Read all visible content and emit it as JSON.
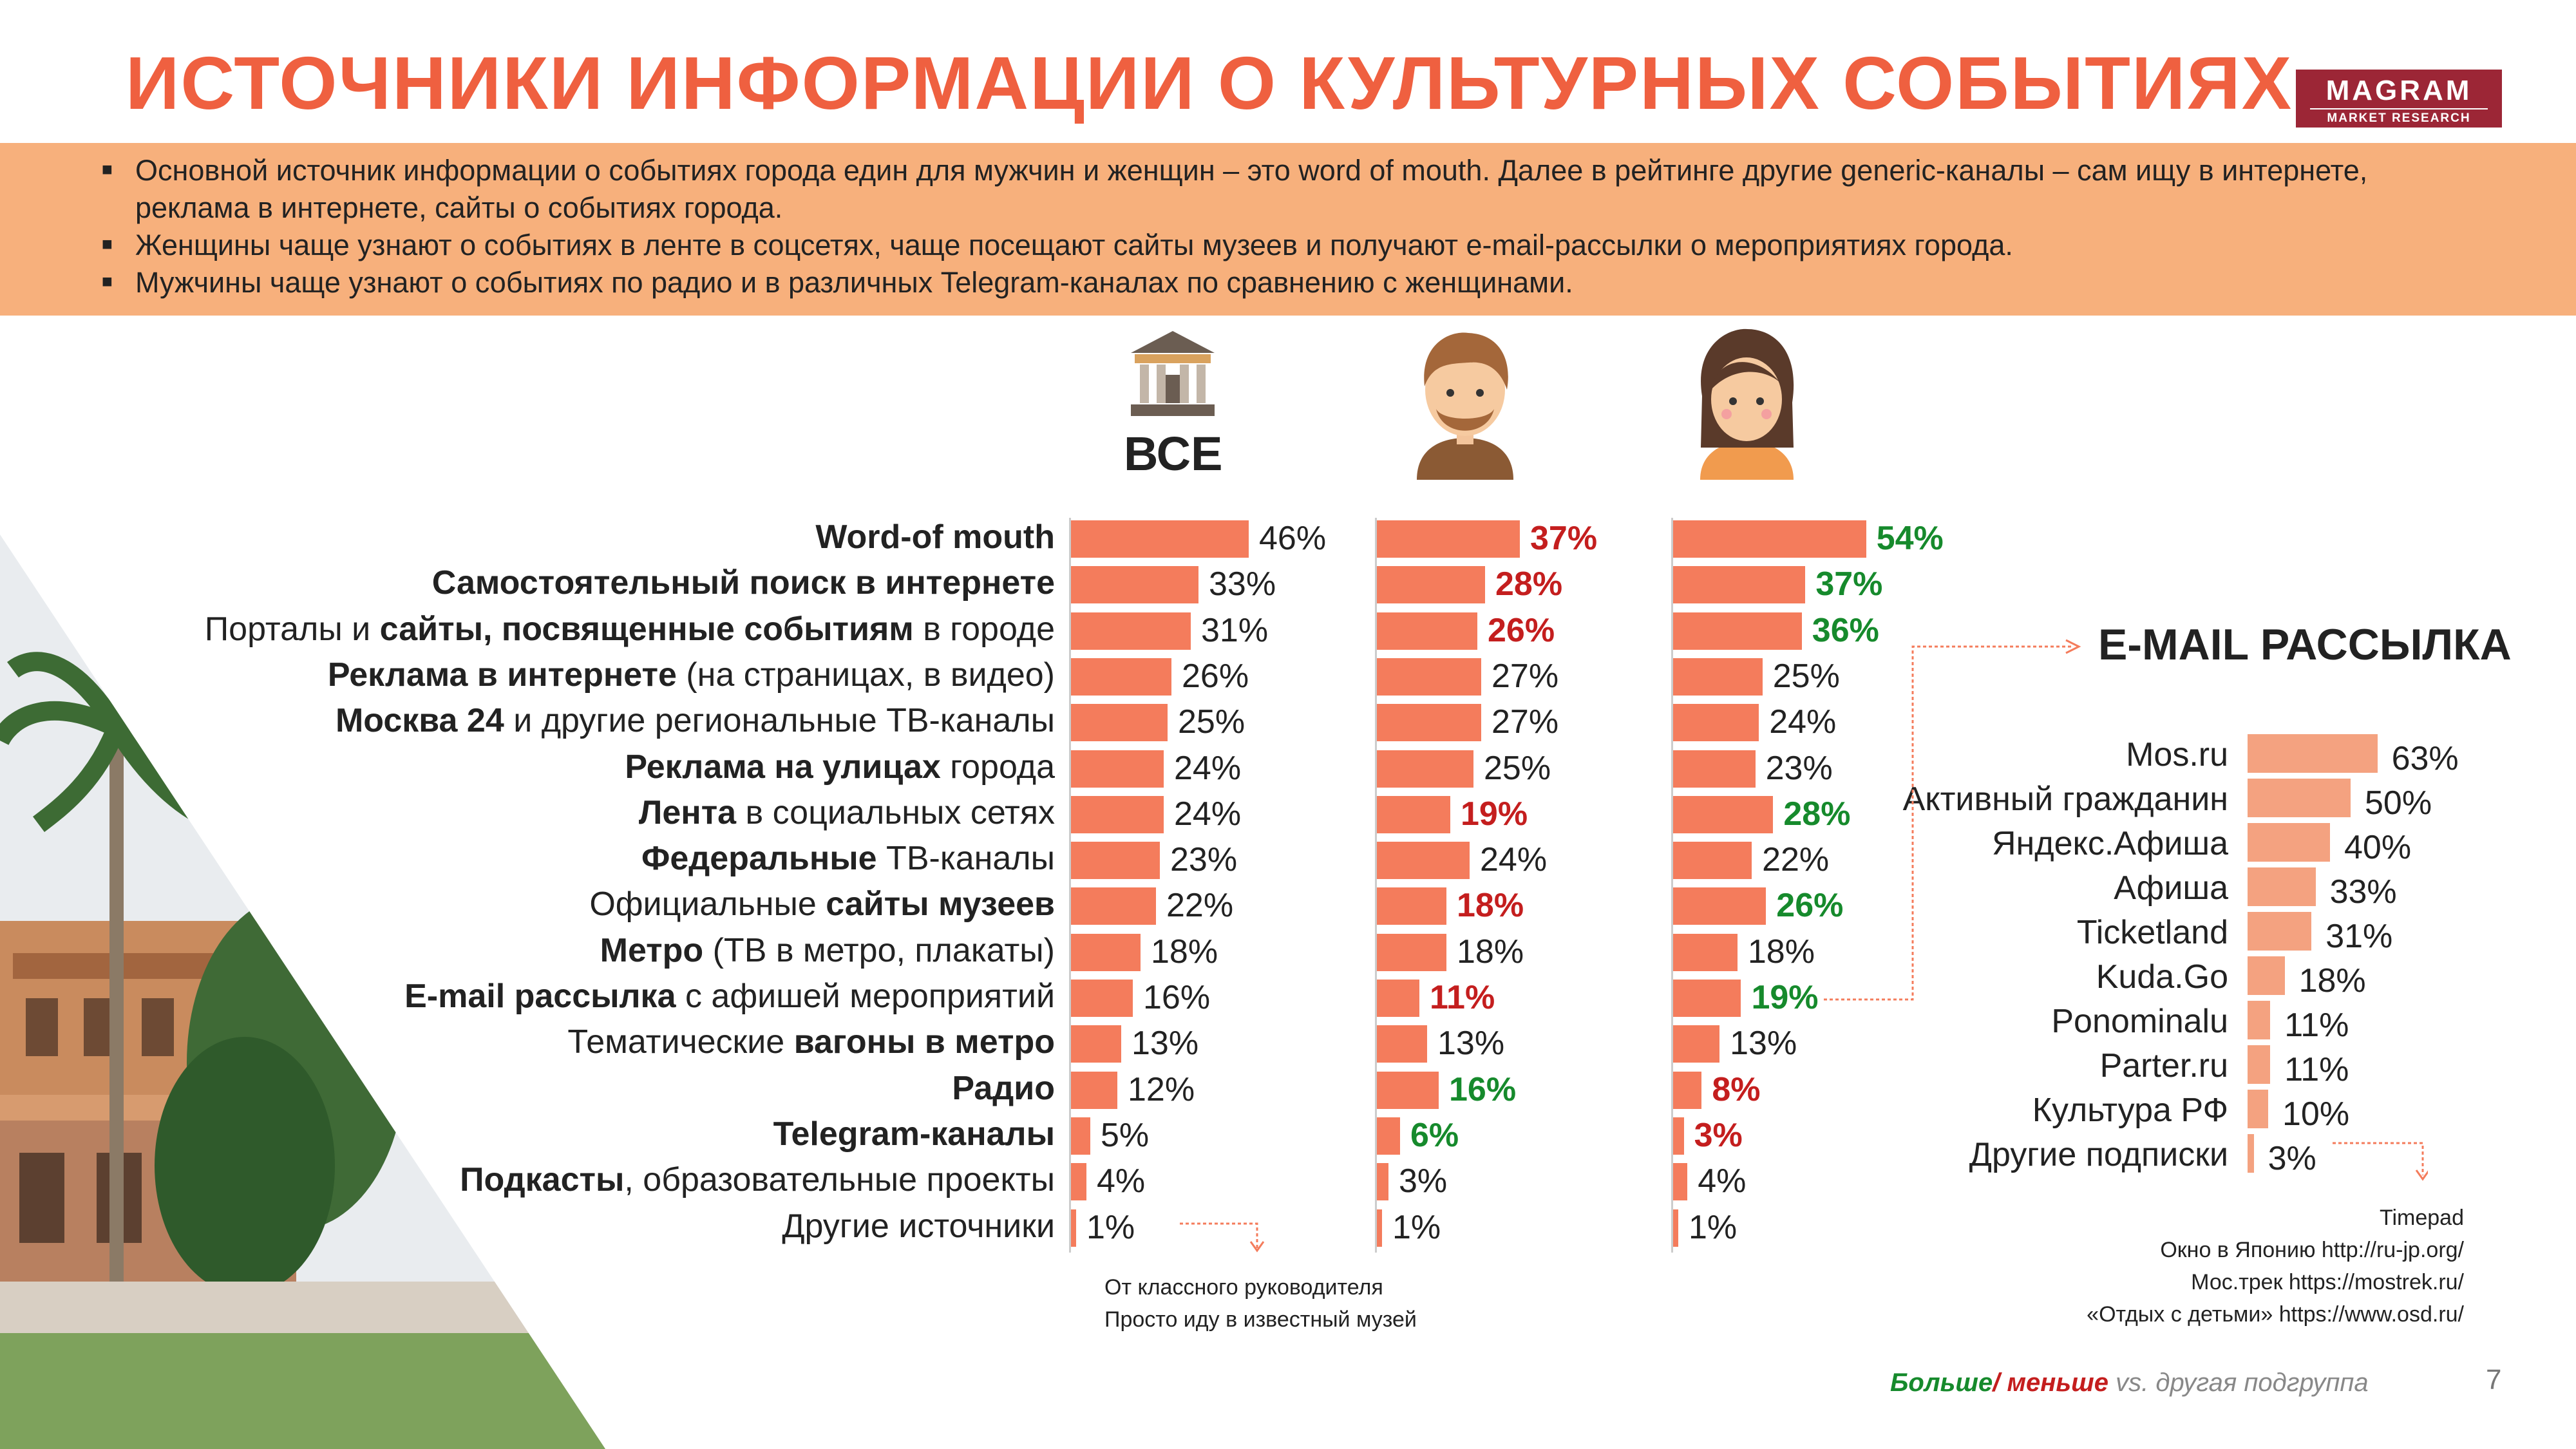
{
  "title": "ИСТОЧНИКИ ИНФОРМАЦИИ О КУЛЬТУРНЫХ СОБЫТИЯХ",
  "logo": {
    "main": "MAGRAM",
    "sub": "MARKET RESEARCH"
  },
  "summary": [
    "Основной источник информации о событиях города един для мужчин и женщин – это word of mouth. Далее в рейтинге другие generic-каналы – сам ищу в интернете, реклама в интернете, сайты о событиях города.",
    "Женщины чаще узнают о событиях в ленте в соцсетях, чаще посещают сайты музеев и получают e-mail-рассылки о мероприятиях города.",
    "Мужчины чаще узнают о событиях по радио и в различных Telegram-каналах по сравнению с женщинами."
  ],
  "column_all_label": "ВСЕ",
  "colors": {
    "bar": "#f47c5c",
    "more": "#168a2c",
    "less": "#c41e1e"
  },
  "chart_data": [
    {
      "type": "bar",
      "orientation": "horizontal",
      "title": "Источники информации о культурных событиях",
      "categories": [
        {
          "bold": "Word-of mouth",
          "rest": ""
        },
        {
          "bold": "Самостоятельный поиск в интернете",
          "rest": ""
        },
        {
          "pre": "Порталы и ",
          "bold": "сайты, посвященные событиям",
          "rest": " в городе"
        },
        {
          "bold": "Реклама в интернете",
          "rest": " (на страницах, в видео)"
        },
        {
          "bold": "Москва 24",
          "rest": " и другие региональные ТВ-каналы"
        },
        {
          "bold": "Реклама на улицах",
          "rest": " города"
        },
        {
          "bold": "Лента",
          "rest": " в социальных сетях"
        },
        {
          "bold": "Федеральные",
          "rest": " ТВ-каналы"
        },
        {
          "pre": "Официальные ",
          "bold": "сайты музеев",
          "rest": ""
        },
        {
          "bold": "Метро",
          "rest": " (ТВ в метро, плакаты)"
        },
        {
          "bold": "E-mail рассылка",
          "rest": " с афишей мероприятий"
        },
        {
          "pre": "Тематические ",
          "bold": "вагоны в метро",
          "rest": ""
        },
        {
          "bold": "Радио",
          "rest": ""
        },
        {
          "bold": "Telegram-каналы",
          "rest": ""
        },
        {
          "bold": "Подкасты",
          "rest": ", образовательные проекты"
        },
        {
          "pre": "Другие источники",
          "bold": "",
          "rest": ""
        }
      ],
      "series": [
        {
          "name": "ВСЕ",
          "values": [
            46,
            33,
            31,
            26,
            25,
            24,
            24,
            23,
            22,
            18,
            16,
            13,
            12,
            5,
            4,
            1
          ],
          "flags": [
            "",
            "",
            "",
            "",
            "",
            "",
            "",
            "",
            "",
            "",
            "",
            "",
            "",
            "",
            "",
            ""
          ]
        },
        {
          "name": "Мужчины",
          "values": [
            37,
            28,
            26,
            27,
            27,
            25,
            19,
            24,
            18,
            18,
            11,
            13,
            16,
            6,
            3,
            1
          ],
          "flags": [
            "less",
            "less",
            "less",
            "",
            "",
            "",
            "less",
            "",
            "less",
            "",
            "less",
            "",
            "more",
            "more",
            "",
            ""
          ]
        },
        {
          "name": "Женщины",
          "values": [
            54,
            37,
            36,
            25,
            24,
            23,
            28,
            22,
            26,
            18,
            19,
            13,
            8,
            3,
            4,
            1
          ],
          "flags": [
            "more",
            "more",
            "more",
            "",
            "",
            "",
            "more",
            "",
            "more",
            "",
            "more",
            "",
            "less",
            "less",
            "",
            ""
          ]
        }
      ],
      "unit": "%"
    },
    {
      "type": "bar",
      "orientation": "horizontal",
      "title": "E-MAIL РАССЫЛКА",
      "categories": [
        "Mos.ru",
        "Активный гражданин",
        "Яндекс.Афиша",
        "Афиша",
        "Ticketland",
        "Kuda.Go",
        "Ponominalu",
        "Parter.ru",
        "Культура РФ",
        "Другие подписки"
      ],
      "values": [
        63,
        50,
        40,
        33,
        31,
        18,
        11,
        11,
        10,
        3
      ],
      "unit": "%"
    }
  ],
  "other_sources_note": [
    "От классного руководителя",
    "Просто иду в известный музей"
  ],
  "other_subscriptions_note": [
    "Timepad",
    "Окно в Японию http://ru-jp.org/",
    "Мос.трек https://mostrek.ru/",
    "«Отдых с детьми» https://www.osd.ru/"
  ],
  "legend": {
    "more": "Больше",
    "sep": "/ ",
    "less": "меньше",
    "rest": " vs. другая подгруппа"
  },
  "page_number": "7"
}
